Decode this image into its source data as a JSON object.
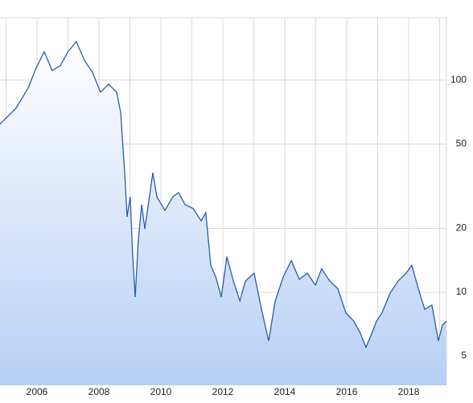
{
  "chart_data": {
    "type": "area",
    "log_scale": true,
    "grid": true,
    "color": "#2a5caa",
    "x": [
      2004.8,
      2005.32,
      2005.71,
      2005.97,
      2006.23,
      2006.49,
      2006.75,
      2007.0,
      2007.27,
      2007.53,
      2007.79,
      2008.05,
      2008.31,
      2008.57,
      2008.7,
      2008.83,
      2008.91,
      2009.01,
      2009.09,
      2009.17,
      2009.27,
      2009.38,
      2009.48,
      2009.61,
      2009.74,
      2009.87,
      2010.13,
      2010.39,
      2010.57,
      2010.78,
      2011.04,
      2011.3,
      2011.45,
      2011.61,
      2011.77,
      2011.95,
      2012.13,
      2012.34,
      2012.55,
      2012.73,
      2013.01,
      2013.25,
      2013.48,
      2013.69,
      2013.95,
      2014.21,
      2014.47,
      2014.73,
      2014.99,
      2015.19,
      2015.45,
      2015.71,
      2015.97,
      2016.23,
      2016.44,
      2016.62,
      2016.81,
      2016.96,
      2017.14,
      2017.4,
      2017.66,
      2017.92,
      2018.1,
      2018.31,
      2018.52,
      2018.75,
      2018.96,
      2019.09,
      2019.22
    ],
    "values": [
      62,
      73.6,
      91.6,
      114,
      136,
      111,
      117,
      136,
      152,
      124,
      109,
      87.7,
      95.7,
      87.7,
      70.5,
      36.6,
      22.7,
      28.2,
      14.7,
      9.5,
      17.5,
      25.9,
      19.9,
      27,
      36.6,
      28.2,
      24.3,
      28.2,
      29.5,
      25.9,
      24.8,
      21.7,
      23.7,
      13.4,
      11.8,
      9.5,
      14.7,
      11.3,
      9.1,
      11.3,
      12.3,
      8.3,
      5.9,
      9.1,
      11.8,
      14.1,
      11.5,
      12.3,
      10.8,
      12.9,
      11.3,
      10.4,
      8.0,
      7.3,
      6.4,
      5.5,
      6.4,
      7.3,
      8.0,
      9.9,
      11.3,
      12.3,
      13.4,
      10.4,
      8.3,
      8.7,
      5.9,
      7.0,
      7.3
    ],
    "xlim": [
      2004.805,
      2019.22
    ],
    "xticks": [
      2006,
      2008,
      2010,
      2012,
      2014,
      2016,
      2018
    ],
    "xminor_ticks": [
      2005,
      2007,
      2009,
      2011,
      2013,
      2015,
      2017,
      2019
    ],
    "ylim": [
      3.64,
      197
    ],
    "yticks": [
      5,
      10,
      20,
      50,
      100
    ]
  }
}
